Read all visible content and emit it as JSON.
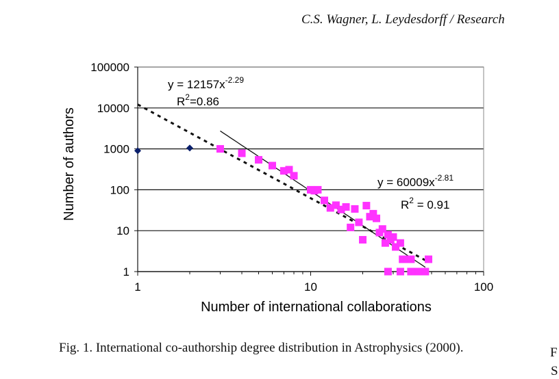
{
  "header": {
    "running_head": "C.S. Wagner, L. Leydesdorff / Research"
  },
  "caption": {
    "text": "Fig. 1. International co-authorship degree distribution in Astrophysics (2000)."
  },
  "right_column": {
    "fragment_1": "F",
    "fragment_2": "S"
  },
  "chart_data": {
    "type": "scatter",
    "xlabel": "Number of international collaborations",
    "ylabel": "Number of authors",
    "xscale": "log",
    "yscale": "log",
    "xlim": [
      1,
      100
    ],
    "ylim": [
      1,
      100000
    ],
    "x_ticks": [
      "1",
      "10",
      "100"
    ],
    "y_ticks": [
      "1",
      "10",
      "100",
      "1000",
      "10000",
      "100000"
    ],
    "grid": "horizontal",
    "colors": {
      "magenta": "#ff33ff",
      "navy": "#0a1f6b",
      "line": "#111111"
    },
    "series": [
      {
        "marker": "diamond",
        "color": "#0a1f6b",
        "points": [
          [
            1,
            900
          ],
          [
            2,
            1050
          ]
        ]
      },
      {
        "marker": "square",
        "color": "#ff33ff",
        "points": [
          [
            3,
            1000
          ],
          [
            4,
            780
          ],
          [
            5,
            540
          ],
          [
            6,
            390
          ],
          [
            7,
            290
          ],
          [
            7.5,
            310
          ],
          [
            8,
            220
          ],
          [
            10,
            100
          ],
          [
            10.5,
            95
          ],
          [
            11,
            100
          ],
          [
            12,
            55
          ],
          [
            13,
            36
          ],
          [
            14,
            42
          ],
          [
            15,
            33
          ],
          [
            16,
            38
          ],
          [
            17,
            12
          ],
          [
            18,
            34
          ],
          [
            19,
            16
          ],
          [
            20,
            6
          ],
          [
            21,
            41
          ],
          [
            22,
            22
          ],
          [
            23,
            26
          ],
          [
            24,
            20
          ],
          [
            25,
            9
          ],
          [
            26,
            11
          ],
          [
            27,
            5
          ],
          [
            28,
            8
          ],
          [
            29,
            6
          ],
          [
            30,
            7
          ],
          [
            31,
            4
          ],
          [
            33,
            5
          ],
          [
            34,
            2
          ],
          [
            36,
            2
          ],
          [
            38,
            2
          ],
          [
            48,
            2
          ],
          [
            28,
            1
          ],
          [
            33,
            1
          ],
          [
            38,
            1
          ],
          [
            40,
            1
          ],
          [
            42,
            1
          ],
          [
            46,
            1
          ]
        ]
      }
    ],
    "fits": [
      {
        "style": "dotted",
        "a": 12157,
        "b": -2.29,
        "xrange": [
          1,
          48
        ],
        "equation_prefix": "y = 12157x",
        "exponent": "-2.29",
        "r2_prefix": "R",
        "r2_sup": "2",
        "r2_value": "=0.86"
      },
      {
        "style": "solid",
        "a": 60009,
        "b": -2.81,
        "xrange": [
          3,
          46
        ],
        "equation_prefix": "y = 60009x",
        "exponent": "-2.81",
        "r2_prefix": "R",
        "r2_sup": "2",
        "r2_value": " = 0.91"
      }
    ]
  }
}
